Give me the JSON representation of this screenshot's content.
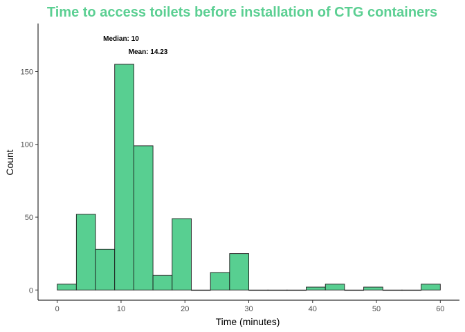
{
  "chart_data": {
    "type": "bar",
    "title": "Time to access toilets before installation of CTG containers",
    "xlabel": "Time (minutes)",
    "ylabel": "Count",
    "xlim": [
      -3,
      63
    ],
    "ylim": [
      -7,
      183
    ],
    "xticks": [
      0,
      10,
      20,
      30,
      40,
      50,
      60
    ],
    "yticks": [
      0,
      50,
      100,
      150
    ],
    "bin_width": 3,
    "bins": [
      {
        "center": 1.5,
        "count": 4
      },
      {
        "center": 4.5,
        "count": 52
      },
      {
        "center": 7.5,
        "count": 28
      },
      {
        "center": 10.5,
        "count": 155
      },
      {
        "center": 13.5,
        "count": 99
      },
      {
        "center": 16.5,
        "count": 10
      },
      {
        "center": 19.5,
        "count": 49
      },
      {
        "center": 22.5,
        "count": 0
      },
      {
        "center": 25.5,
        "count": 12
      },
      {
        "center": 28.5,
        "count": 25
      },
      {
        "center": 31.5,
        "count": 0
      },
      {
        "center": 34.5,
        "count": 0
      },
      {
        "center": 37.5,
        "count": 0
      },
      {
        "center": 40.5,
        "count": 2
      },
      {
        "center": 43.5,
        "count": 4
      },
      {
        "center": 46.5,
        "count": 0
      },
      {
        "center": 49.5,
        "count": 2
      },
      {
        "center": 52.5,
        "count": 0
      },
      {
        "center": 55.5,
        "count": 0
      },
      {
        "center": 58.5,
        "count": 4
      }
    ],
    "annotations": [
      {
        "text": "Median: 10",
        "x": 10,
        "y": 173
      },
      {
        "text": "Mean: 14.23",
        "x": 14.23,
        "y": 164
      }
    ],
    "grid": false,
    "colors": {
      "title": "#5bcf92",
      "bar_fill": "#58cf91",
      "bar_stroke": "#1a1a1a",
      "axis": "#000000",
      "tick_text": "#4d4d4d"
    }
  }
}
